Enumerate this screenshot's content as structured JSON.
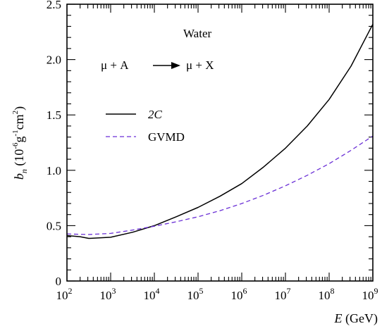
{
  "chart_data": {
    "type": "line",
    "xlabel": "E (GeV)",
    "ylabel": "b_n (10^-6 g^-1 cm^2)",
    "xscale": "log",
    "xlim": [
      100,
      1000000000
    ],
    "ylim": [
      0,
      2.5
    ],
    "x_ticks": [
      {
        "base": "10",
        "exp": "2"
      },
      {
        "base": "10",
        "exp": "3"
      },
      {
        "base": "10",
        "exp": "4"
      },
      {
        "base": "10",
        "exp": "5"
      },
      {
        "base": "10",
        "exp": "6"
      },
      {
        "base": "10",
        "exp": "7"
      },
      {
        "base": "10",
        "exp": "8"
      },
      {
        "base": "10",
        "exp": "9"
      }
    ],
    "y_ticks": [
      "0",
      "0.5",
      "1.0",
      "1.5",
      "2.0",
      "2.5"
    ],
    "annotations": {
      "material": "Water",
      "reaction_left": "μ + A",
      "reaction_right": "μ + X"
    },
    "legend_position": "upper-left",
    "series": [
      {
        "name": "2C",
        "color": "#000000",
        "dash": "solid",
        "x": [
          100,
          200,
          316,
          1000,
          3160,
          10000,
          31600,
          100000,
          316000,
          1000000,
          3160000,
          10000000,
          31600000,
          100000000,
          316000000,
          1000000000
        ],
        "y": [
          0.41,
          0.4,
          0.385,
          0.395,
          0.44,
          0.5,
          0.58,
          0.665,
          0.765,
          0.88,
          1.03,
          1.2,
          1.4,
          1.64,
          1.94,
          2.32
        ]
      },
      {
        "name": "GVMD",
        "color": "#6a2fd6",
        "dash": "dashed",
        "x": [
          100,
          316,
          1000,
          3160,
          10000,
          31600,
          100000,
          316000,
          1000000,
          3160000,
          10000000,
          31600000,
          100000000,
          316000000,
          1000000000
        ],
        "y": [
          0.425,
          0.42,
          0.43,
          0.46,
          0.495,
          0.535,
          0.58,
          0.635,
          0.7,
          0.775,
          0.86,
          0.955,
          1.06,
          1.18,
          1.31
        ]
      }
    ]
  }
}
